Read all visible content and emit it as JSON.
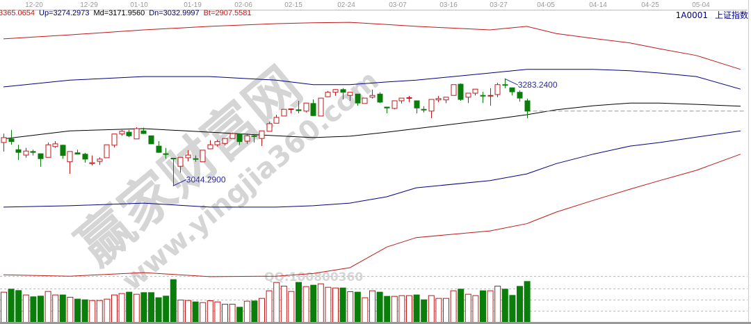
{
  "header": {
    "top": "3365.0654",
    "up": "Up=3274.2973",
    "md": "Md=3171.9560",
    "dn": "Dn=3032.9997",
    "bt": "Bt=2907.5581",
    "symbol_code": "1A0001",
    "symbol_name": "上证指数"
  },
  "watermark": {
    "site_name": "赢家财富网",
    "url": "www.yingjia360.com",
    "qq": "QQ:100800360"
  },
  "colors": {
    "up": "#c01818",
    "down": "#0a7d0a",
    "band_outer": "#c01818",
    "band_inner": "#000080",
    "band_mid": "#000000"
  },
  "chart_data": {
    "type": "candlestick",
    "x_tick_labels": [
      "12-20",
      "12-29",
      "01-10",
      "01-19",
      "02-06",
      "02-15",
      "02-24",
      "03-07",
      "03-16",
      "03-27",
      "04-05",
      "04-14",
      "04-25",
      "05-04"
    ],
    "annotations": [
      {
        "label": "3044.2900",
        "bar": 23,
        "kind": "low"
      },
      {
        "label": "3283.2400",
        "bar": 68,
        "kind": "high"
      }
    ],
    "ohlc": [
      [
        3141,
        3161,
        3121,
        3152
      ],
      [
        3149,
        3169,
        3136,
        3143
      ],
      [
        3125,
        3136,
        3102,
        3119
      ],
      [
        3113,
        3129,
        3107,
        3122
      ],
      [
        3121,
        3125,
        3112,
        3119
      ],
      [
        3116,
        3116,
        3087,
        3105
      ],
      [
        3108,
        3141,
        3108,
        3136
      ],
      [
        3132,
        3144,
        3129,
        3138
      ],
      [
        3135,
        3136,
        3105,
        3112
      ],
      [
        3098,
        3121,
        3071,
        3121
      ],
      [
        3118,
        3125,
        3115,
        3115
      ],
      [
        3115,
        3118,
        3096,
        3104
      ],
      [
        3094,
        3112,
        3090,
        3096
      ],
      [
        3099,
        3108,
        3091,
        3104
      ],
      [
        3107,
        3136,
        3107,
        3136
      ],
      [
        3135,
        3160,
        3130,
        3160
      ],
      [
        3160,
        3169,
        3156,
        3166
      ],
      [
        3164,
        3169,
        3153,
        3156
      ],
      [
        3149,
        3175,
        3149,
        3172
      ],
      [
        3167,
        3174,
        3160,
        3161
      ],
      [
        3156,
        3156,
        3138,
        3138
      ],
      [
        3133,
        3144,
        3118,
        3119
      ],
      [
        3116,
        3129,
        3105,
        3115
      ],
      [
        3106,
        3106,
        3044.29,
        3105
      ],
      [
        3088,
        3108,
        3074,
        3108
      ],
      [
        3107,
        3124,
        3099,
        3113
      ],
      [
        3105,
        3112,
        3098,
        3104
      ],
      [
        3098,
        3124,
        3098,
        3124
      ],
      [
        3127,
        3146,
        3127,
        3136
      ],
      [
        3136,
        3147,
        3132,
        3143
      ],
      [
        3139,
        3150,
        3135,
        3150
      ],
      [
        3150,
        3163,
        3150,
        3161
      ],
      [
        3160,
        3161,
        3136,
        3143
      ],
      [
        3144,
        3161,
        3138,
        3156
      ],
      [
        3156,
        3160,
        3141,
        3155
      ],
      [
        3150,
        3167,
        3133,
        3167
      ],
      [
        3166,
        3187,
        3166,
        3183
      ],
      [
        3184,
        3203,
        3184,
        3197
      ],
      [
        3200,
        3215,
        3200,
        3215
      ],
      [
        3215,
        3217,
        3206,
        3216
      ],
      [
        3214,
        3234,
        3206,
        3212
      ],
      [
        3211,
        3229,
        3208,
        3229
      ],
      [
        3228,
        3237,
        3200,
        3201
      ],
      [
        3200,
        3240,
        3200,
        3240
      ],
      [
        3243,
        3256,
        3242,
        3253
      ],
      [
        3253,
        3260,
        3245,
        3259
      ],
      [
        3259,
        3262,
        3237,
        3253
      ],
      [
        3246,
        3253,
        3234,
        3253
      ],
      [
        3249,
        3249,
        3223,
        3229
      ],
      [
        3228,
        3240,
        3228,
        3240
      ],
      [
        3242,
        3259,
        3239,
        3246
      ],
      [
        3249,
        3253,
        3229,
        3231
      ],
      [
        3220,
        3220,
        3206,
        3218
      ],
      [
        3217,
        3234,
        3215,
        3234
      ],
      [
        3234,
        3240,
        3228,
        3240
      ],
      [
        3240,
        3245,
        3231,
        3241
      ],
      [
        3234,
        3234,
        3206,
        3218
      ],
      [
        3215,
        3222,
        3208,
        3214
      ],
      [
        3211,
        3237,
        3195,
        3237
      ],
      [
        3236,
        3245,
        3231,
        3239
      ],
      [
        3236,
        3242,
        3229,
        3242
      ],
      [
        3246,
        3270,
        3246,
        3270
      ],
      [
        3271,
        3273,
        3234,
        3237
      ],
      [
        3242,
        3251,
        3229,
        3251
      ],
      [
        3251,
        3260,
        3246,
        3260
      ],
      [
        3246,
        3254,
        3229,
        3245
      ],
      [
        3245,
        3262,
        3223,
        3246
      ],
      [
        3248,
        3274,
        3242,
        3270
      ],
      [
        3270,
        3283.24,
        3262,
        3269
      ],
      [
        3263,
        3263,
        3246,
        3254
      ],
      [
        3253,
        3257,
        3232,
        3240
      ],
      [
        3234,
        3239,
        3195,
        3211
      ]
    ],
    "volume": [
      130,
      143,
      137,
      118,
      110,
      113,
      133,
      118,
      118,
      108,
      100,
      97,
      94,
      94,
      100,
      118,
      124,
      130,
      121,
      128,
      128,
      106,
      113,
      184,
      96,
      94,
      88,
      85,
      93,
      88,
      78,
      78,
      65,
      91,
      92,
      103,
      136,
      172,
      156,
      133,
      172,
      154,
      160,
      166,
      151,
      148,
      148,
      132,
      130,
      106,
      136,
      130,
      112,
      112,
      115,
      115,
      118,
      97,
      115,
      103,
      103,
      136,
      143,
      121,
      115,
      136,
      136,
      156,
      143,
      116,
      155,
      176
    ],
    "bands": {
      "x": [
        0,
        9,
        19,
        28,
        37,
        42,
        47,
        52,
        56,
        66,
        71,
        75,
        80,
        85,
        89,
        94,
        100
      ],
      "top": [
        3372,
        3381,
        3392,
        3400,
        3406,
        3408,
        3409,
        3404,
        3400,
        3392,
        3400,
        3384,
        3373,
        3363,
        3350,
        3335,
        3304
      ],
      "up": [
        3265,
        3280,
        3288,
        3288,
        3280,
        3270,
        3270,
        3276,
        3280,
        3296,
        3304,
        3304,
        3304,
        3301,
        3296,
        3288,
        3260
      ],
      "md": [
        3149,
        3167,
        3172,
        3164,
        3156,
        3152,
        3155,
        3164,
        3172,
        3192,
        3203,
        3214,
        3223,
        3229,
        3229,
        3226,
        3222
      ],
      "dn": [
        2997,
        3000,
        3006,
        2997,
        2997,
        3000,
        3006,
        3020,
        3040,
        3056,
        3071,
        3094,
        3115,
        3133,
        3141,
        3153,
        3167
      ],
      "bt": [
        2846,
        2843,
        2851,
        2842,
        2843,
        2849,
        2862,
        2908,
        2929,
        2944,
        2960,
        2986,
        3012,
        3037,
        3056,
        3079,
        3115
      ]
    },
    "last_close_line": 3211
  }
}
